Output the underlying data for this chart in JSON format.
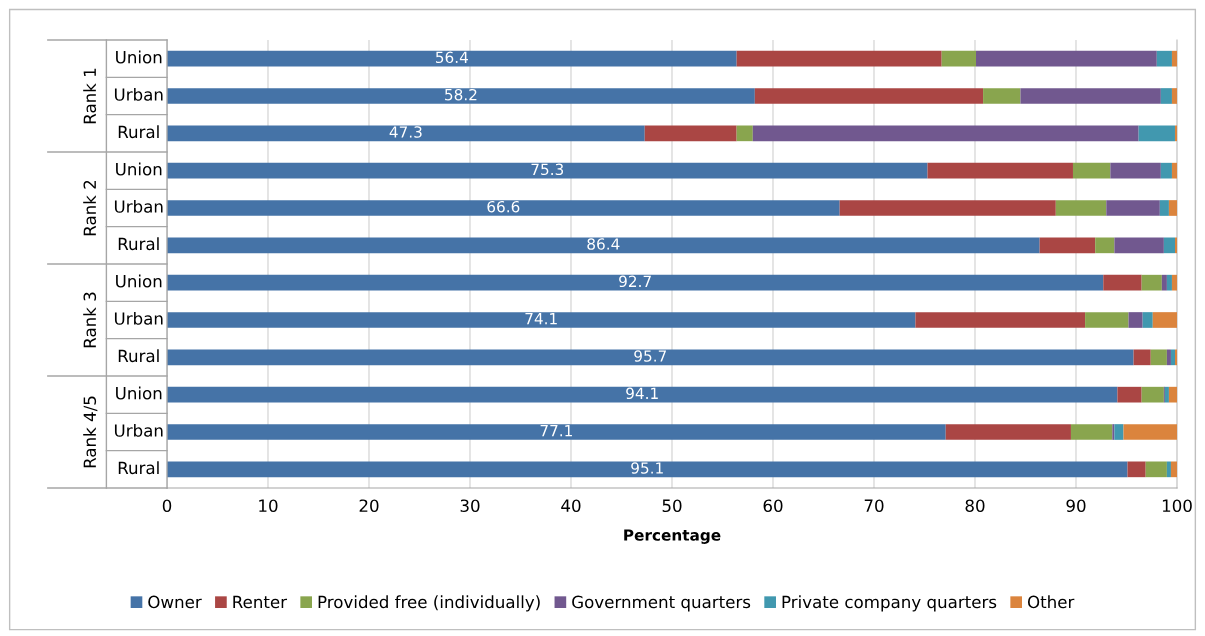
{
  "chart_data": {
    "type": "bar",
    "orientation": "horizontal",
    "stacked": true,
    "xlabel": "Percentage",
    "categories": [
      "Union",
      "Urban",
      "Rural",
      "Union",
      "Urban",
      "Rural",
      "Union",
      "Urban",
      "Rural",
      "Union",
      "Urban",
      "Rural"
    ],
    "annotations": [
      "Rank 1",
      "Rank 2",
      "Rank 3",
      "Rank 4/5"
    ],
    "series": [
      {
        "name": "Owner",
        "color": "#4573a7",
        "values": [
          56.4,
          58.2,
          47.3,
          75.3,
          66.6,
          86.4,
          92.7,
          74.1,
          95.7,
          94.1,
          77.1,
          95.1
        ],
        "value_labels": [
          "56.4",
          "58.2",
          "47.3",
          "75.3",
          "66.6",
          "86.4",
          "92.7",
          "74.1",
          "95.7",
          "94.1",
          "77.1",
          "95.1"
        ]
      },
      {
        "name": "Renter",
        "color": "#aa4644",
        "values": [
          20.3,
          22.6,
          9.1,
          14.4,
          21.4,
          5.5,
          3.8,
          16.8,
          1.7,
          2.4,
          12.4,
          1.8
        ]
      },
      {
        "name": "Provided free (individually)",
        "color": "#89a54e",
        "values": [
          3.4,
          3.7,
          1.6,
          3.7,
          5.0,
          1.9,
          2.0,
          4.3,
          1.6,
          2.2,
          4.1,
          2.1
        ]
      },
      {
        "name": "Government quarters",
        "color": "#71588f",
        "values": [
          17.9,
          13.9,
          38.2,
          5.0,
          5.3,
          4.9,
          0.5,
          1.4,
          0.4,
          0.1,
          0.2,
          0.0
        ]
      },
      {
        "name": "Private company quarters",
        "color": "#4198af",
        "values": [
          1.5,
          1.1,
          3.6,
          1.1,
          0.9,
          1.1,
          0.5,
          1.0,
          0.4,
          0.4,
          0.9,
          0.4
        ]
      },
      {
        "name": "Other",
        "color": "#db843d",
        "values": [
          0.5,
          0.5,
          0.2,
          0.5,
          0.8,
          0.2,
          0.5,
          2.4,
          0.2,
          0.8,
          5.3,
          0.6
        ]
      }
    ],
    "xlim": [
      0,
      100
    ],
    "xticks": [
      0,
      10,
      20,
      30,
      40,
      50,
      60,
      70,
      80,
      90,
      100
    ],
    "grid": "x",
    "legend": "bottom"
  }
}
